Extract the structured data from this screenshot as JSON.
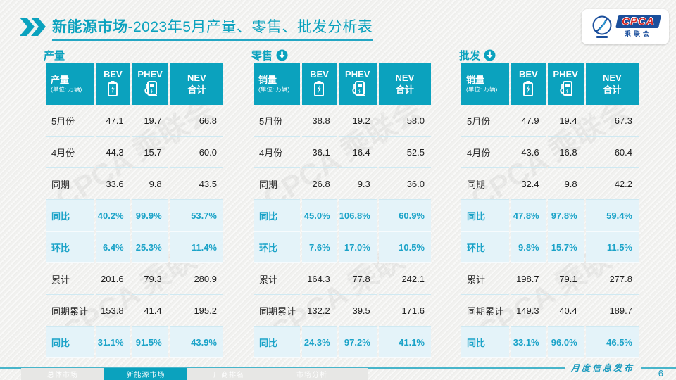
{
  "title": {
    "highlight": "新能源市场",
    "rest": "-2023年5月产量、零售、批发分析表"
  },
  "logo": {
    "main": "CPCA",
    "sub": "乘联会"
  },
  "watermark_text": "CPCA 乘联会",
  "colors": {
    "teal": "#0ba2be",
    "highlight_row_bg": "#e4f3f9",
    "highlight_text": "#1ba3c8",
    "logo_blue": "#1b4f9c",
    "logo_red": "#d42a28"
  },
  "tables": [
    {
      "section_label": "产量",
      "has_down_arrow": false,
      "header": {
        "label": "产量",
        "unit": "(单位: 万辆)",
        "bev": "BEV",
        "phev": "PHEV",
        "nev1": "NEV",
        "nev2": "合计"
      },
      "rows": [
        {
          "label": "5月份",
          "bev": "47.1",
          "phev": "19.7",
          "nev": "66.8",
          "highlight": false
        },
        {
          "label": "4月份",
          "bev": "44.3",
          "phev": "15.7",
          "nev": "60.0",
          "highlight": false
        },
        {
          "label": "同期",
          "bev": "33.6",
          "phev": "9.8",
          "nev": "43.5",
          "highlight": false
        },
        {
          "label": "同比",
          "bev": "40.2%",
          "phev": "99.9%",
          "nev": "53.7%",
          "highlight": true
        },
        {
          "label": "环比",
          "bev": "6.4%",
          "phev": "25.3%",
          "nev": "11.4%",
          "highlight": true
        },
        {
          "label": "累计",
          "bev": "201.6",
          "phev": "79.3",
          "nev": "280.9",
          "highlight": false
        },
        {
          "label": "同期累计",
          "bev": "153.8",
          "phev": "41.4",
          "nev": "195.2",
          "highlight": false
        },
        {
          "label": "同比",
          "bev": "31.1%",
          "phev": "91.5%",
          "nev": "43.9%",
          "highlight": true
        }
      ]
    },
    {
      "section_label": "零售",
      "has_down_arrow": true,
      "header": {
        "label": "销量",
        "unit": "(单位: 万辆)",
        "bev": "BEV",
        "phev": "PHEV",
        "nev1": "NEV",
        "nev2": "合计"
      },
      "rows": [
        {
          "label": "5月份",
          "bev": "38.8",
          "phev": "19.2",
          "nev": "58.0",
          "highlight": false
        },
        {
          "label": "4月份",
          "bev": "36.1",
          "phev": "16.4",
          "nev": "52.5",
          "highlight": false
        },
        {
          "label": "同期",
          "bev": "26.8",
          "phev": "9.3",
          "nev": "36.0",
          "highlight": false
        },
        {
          "label": "同比",
          "bev": "45.0%",
          "phev": "106.8%",
          "nev": "60.9%",
          "highlight": true
        },
        {
          "label": "环比",
          "bev": "7.6%",
          "phev": "17.0%",
          "nev": "10.5%",
          "highlight": true
        },
        {
          "label": "累计",
          "bev": "164.3",
          "phev": "77.8",
          "nev": "242.1",
          "highlight": false
        },
        {
          "label": "同期累计",
          "bev": "132.2",
          "phev": "39.5",
          "nev": "171.6",
          "highlight": false
        },
        {
          "label": "同比",
          "bev": "24.3%",
          "phev": "97.2%",
          "nev": "41.1%",
          "highlight": true
        }
      ]
    },
    {
      "section_label": "批发",
      "has_down_arrow": true,
      "header": {
        "label": "销量",
        "unit": "(单位: 万辆)",
        "bev": "BEV",
        "phev": "PHEV",
        "nev1": "NEV",
        "nev2": "合计"
      },
      "rows": [
        {
          "label": "5月份",
          "bev": "47.9",
          "phev": "19.4",
          "nev": "67.3",
          "highlight": false
        },
        {
          "label": "4月份",
          "bev": "43.6",
          "phev": "16.8",
          "nev": "60.4",
          "highlight": false
        },
        {
          "label": "同期",
          "bev": "32.4",
          "phev": "9.8",
          "nev": "42.2",
          "highlight": false
        },
        {
          "label": "同比",
          "bev": "47.8%",
          "phev": "97.8%",
          "nev": "59.4%",
          "highlight": true
        },
        {
          "label": "环比",
          "bev": "9.8%",
          "phev": "15.7%",
          "nev": "11.5%",
          "highlight": true
        },
        {
          "label": "累计",
          "bev": "198.7",
          "phev": "79.1",
          "nev": "277.8",
          "highlight": false
        },
        {
          "label": "同期累计",
          "bev": "149.3",
          "phev": "40.4",
          "nev": "189.7",
          "highlight": false
        },
        {
          "label": "同比",
          "bev": "33.1%",
          "phev": "96.0%",
          "nev": "46.5%",
          "highlight": true
        }
      ]
    }
  ],
  "footer": {
    "tabs": [
      {
        "label": "总体市场",
        "active": false
      },
      {
        "label": "新能源市场",
        "active": true
      },
      {
        "label": "厂商排名",
        "active": false
      },
      {
        "label": "市场分析",
        "active": false
      }
    ],
    "publication": "月度信息发布",
    "page_number": "6"
  }
}
